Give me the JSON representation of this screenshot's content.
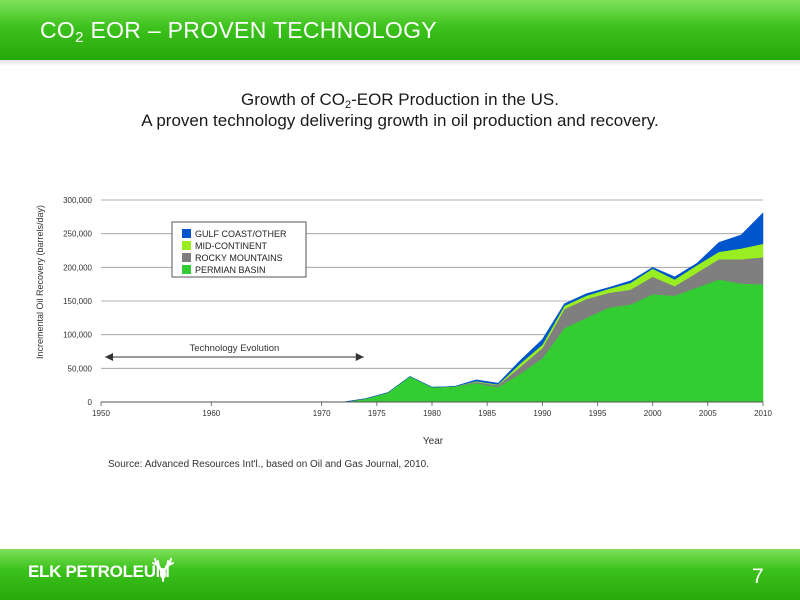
{
  "slide": {
    "title_pre": "CO",
    "title_sub": "2",
    "title_post": " EOR – PROVEN TECHNOLOGY",
    "subtitle1_pre": "Growth of CO",
    "subtitle1_sub": "2",
    "subtitle1_post": "-EOR Production in the US.",
    "subtitle2": "A proven technology delivering growth in oil production and recovery.",
    "logo_text": "ELK PETROLEUM",
    "page_number": "7"
  },
  "chart_data": {
    "type": "area",
    "stacked": true,
    "xlabel": "Year",
    "ylabel": "Incremental Oil Recovery (barrels/day)",
    "xlim": [
      1950,
      2010
    ],
    "ylim": [
      0,
      300000
    ],
    "x_ticks": [
      "1950",
      "1960",
      "1970",
      "1975",
      "1980",
      "1985",
      "1990",
      "1995",
      "2000",
      "2005",
      "2010"
    ],
    "x_tick_values": [
      1950,
      1960,
      1970,
      1975,
      1980,
      1985,
      1990,
      1995,
      2000,
      2005,
      2010
    ],
    "y_ticks": [
      "0",
      "50,000",
      "100,000",
      "150,000",
      "200,000",
      "250,000",
      "300,000"
    ],
    "y_tick_values": [
      0,
      50000,
      100000,
      150000,
      200000,
      250000,
      300000
    ],
    "x": [
      1950,
      1972,
      1974,
      1976,
      1978,
      1980,
      1982,
      1984,
      1986,
      1988,
      1990,
      1992,
      1994,
      1996,
      1998,
      2000,
      2002,
      2004,
      2006,
      2008,
      2010
    ],
    "series": [
      {
        "name": "PERMIAN BASIN",
        "color": "#33cc33",
        "values": [
          0,
          0,
          5000,
          14000,
          38000,
          22000,
          23000,
          28000,
          22000,
          42000,
          65000,
          110000,
          125000,
          140000,
          145000,
          160000,
          158000,
          170000,
          182000,
          176000,
          175000
        ]
      },
      {
        "name": "ROCKY MOUNTAINS",
        "color": "#7f7f7f",
        "values": [
          0,
          0,
          0,
          0,
          0,
          0,
          0,
          2000,
          3000,
          10000,
          15000,
          28000,
          28000,
          22000,
          22000,
          26000,
          14000,
          22000,
          30000,
          36000,
          40000
        ]
      },
      {
        "name": "MID-CONTINENT",
        "color": "#99ee22",
        "values": [
          0,
          0,
          0,
          0,
          0,
          0,
          0,
          1000,
          1000,
          5000,
          5000,
          5000,
          5000,
          6000,
          10000,
          12000,
          10000,
          11000,
          11000,
          16000,
          20000
        ]
      },
      {
        "name": "GULF COAST/OTHER",
        "color": "#0055cc",
        "values": [
          0,
          0,
          0,
          0,
          0,
          0,
          0,
          2000,
          2000,
          5000,
          8000,
          3000,
          3000,
          2000,
          3000,
          2000,
          4000,
          3000,
          14000,
          20000,
          46000
        ]
      }
    ],
    "legend": [
      "GULF COAST/OTHER",
      "MID-CONTINENT",
      "ROCKY MOUNTAINS",
      "PERMIAN BASIN"
    ],
    "legend_position": "top-left",
    "annotation": "Technology Evolution",
    "annotation_range": [
      1950,
      1974
    ],
    "grid": "horizontal",
    "source": "Source: Advanced Resources Int'l., based on Oil and Gas Journal, 2010."
  }
}
